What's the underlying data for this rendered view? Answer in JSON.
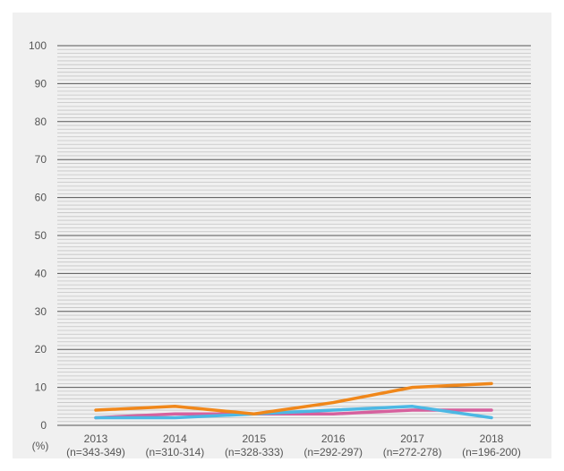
{
  "chart_data": {
    "type": "line",
    "unit_label": "(%)",
    "ylim": [
      0,
      100
    ],
    "y_ticks": [
      0,
      10,
      20,
      30,
      40,
      50,
      60,
      70,
      80,
      90,
      100
    ],
    "y_tick_labels": [
      "0",
      "10",
      "20",
      "30",
      "40",
      "50",
      "60",
      "70",
      "80",
      "90",
      "100"
    ],
    "minor_grid_step": 1,
    "grid": true,
    "categories": [
      {
        "year": "2013",
        "n": "(n=343-349)"
      },
      {
        "year": "2014",
        "n": "(n=310-314)"
      },
      {
        "year": "2015",
        "n": "(n=328-333)"
      },
      {
        "year": "2016",
        "n": "(n=292-297)"
      },
      {
        "year": "2017",
        "n": "(n=272-278)"
      },
      {
        "year": "2018",
        "n": "(n=196-200)"
      }
    ],
    "series": [
      {
        "color": "#d6619e",
        "values": [
          2,
          3,
          3,
          3,
          4,
          4
        ]
      },
      {
        "color": "#4cb8e4",
        "values": [
          2,
          2,
          3,
          4,
          5,
          2
        ]
      },
      {
        "color": "#f0871a",
        "values": [
          4,
          5,
          3,
          6,
          10,
          11
        ]
      }
    ],
    "colors": {
      "panel": "#f0f0f0",
      "grid_major": "#555555",
      "grid_minor": "#c4c4c4",
      "text": "#555555"
    }
  }
}
